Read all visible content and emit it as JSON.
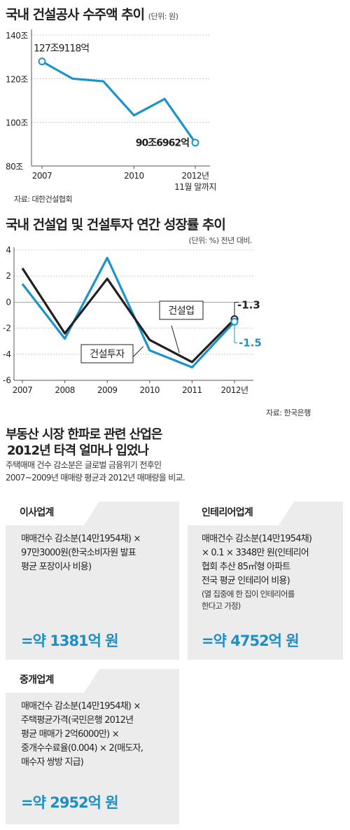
{
  "chart1": {
    "title": "국내 건설공사 수주액 추이",
    "unit": "(단위: 원)",
    "source": "자료: 대한건설협회",
    "y_ticks": [
      "140조",
      "120조",
      "100조",
      "80조"
    ],
    "x_ticks": [
      "2007",
      "2010",
      "2012년"
    ],
    "x_note": "11월 말까지",
    "start_label": "127조9118억",
    "end_label": "90조6962억",
    "color": "#1d93c9"
  },
  "chart2": {
    "title": "국내 건설업 및 건설투자 연간 성장률 추이",
    "unit": "(단위: %) 전년 대비.",
    "source": "자료: 한국은행",
    "y_ticks": [
      "4",
      "2",
      "0",
      "-2",
      "-4",
      "-6"
    ],
    "x_ticks": [
      "2007",
      "2008",
      "2009",
      "2010",
      "2011",
      "2012년"
    ],
    "label_construction": "건설업",
    "label_investment": "건설투자",
    "end_value_construction": "-1.3",
    "end_value_investment": "-1.5",
    "color_construction": "#231f20",
    "color_investment": "#1d93c9"
  },
  "chart_data": [
    {
      "type": "line",
      "title": "국내 건설공사 수주액 추이",
      "unit": "조 원",
      "x": [
        2007,
        2008,
        2009,
        2010,
        2011,
        2012
      ],
      "series": [
        {
          "values": [
            127.9,
            120.0,
            118.8,
            103.2,
            110.7,
            90.7
          ]
        }
      ],
      "ylim": [
        80,
        140
      ],
      "xlim": [
        2007,
        2012
      ]
    },
    {
      "type": "line",
      "title": "국내 건설업 및 건설투자 연간 성장률 추이",
      "unit": "%",
      "x": [
        2007,
        2008,
        2009,
        2010,
        2011,
        2012
      ],
      "series": [
        {
          "name": "건설업",
          "values": [
            2.6,
            -2.4,
            1.8,
            -2.9,
            -4.6,
            -1.3
          ]
        },
        {
          "name": "건설투자",
          "values": [
            1.4,
            -2.8,
            3.4,
            -3.7,
            -5.0,
            -1.5
          ]
        }
      ],
      "ylim": [
        -6,
        4
      ],
      "xlim": [
        2007,
        2012
      ]
    }
  ],
  "section": {
    "title_line1": "부동산 시장 한파로 관련 산업은",
    "title_line2": "2012년 타격 얼마나 입었나",
    "sub_line1": "주택매매 건수 감소분은 글로벌 금융위기 전후인",
    "sub_line2": "2007~2009년 매매량 평균과 2012년 매매량을 비교."
  },
  "cards": [
    {
      "title": "이사업계",
      "lines": [
        "매매건수 감소분(14만1954채) ×",
        "97만3000원(한국소비자원 발표",
        "평균 포장이사 비용)"
      ],
      "note": [],
      "result": "=약 1381억 원"
    },
    {
      "title": "인테리어업계",
      "lines": [
        "매매건수 감소분(14만1954채)",
        "× 0.1 × 3348만 원(인테리어",
        "협회 추산 85㎡형 아파트",
        "전국 평균 인테리어 비용)"
      ],
      "note": [
        "(열 집중에 한 집이 인테리어를",
        "한다고 가정)"
      ],
      "result": "=약 4752억 원"
    },
    {
      "title": "중개업계",
      "lines": [
        "매매건수 감소분(14만1954채) ×",
        "주택평균가격(국민은행 2012년",
        "평균 매매가 2억6000만) ×",
        "중개수수료율(0.004) × 2(매도자,",
        "매수자 쌍방 지급)"
      ],
      "note": [],
      "result": "=약 2952억 원"
    }
  ]
}
